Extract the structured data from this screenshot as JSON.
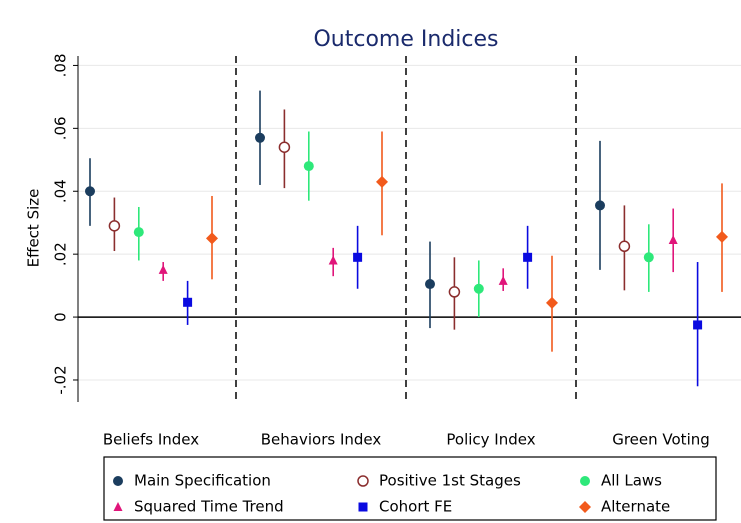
{
  "chart_data": {
    "type": "coefficient",
    "title": "Outcome Indices",
    "y_label": "Effect Size",
    "categories": [
      "Beliefs Index",
      "Behaviors Index",
      "Policy Index",
      "Green Voting"
    ],
    "ylim": [
      -0.027,
      0.083
    ],
    "yticks": [
      {
        "value": -0.02,
        "label": "-.02"
      },
      0,
      {
        "value": 0.02,
        "label": ".02"
      },
      {
        "value": 0.04,
        "label": ".04"
      },
      {
        "value": 0.06,
        "label": ".06"
      },
      {
        "value": 0.08,
        "label": ".08"
      }
    ],
    "grid": true,
    "series": [
      {
        "name": "Main Specification",
        "color": "#1b3d5e",
        "marker": "circle",
        "values": [
          0.04,
          0.057,
          0.0105,
          0.0355
        ],
        "lower": [
          0.029,
          0.042,
          -0.0035,
          0.015
        ],
        "upper": [
          0.0505,
          0.072,
          0.024,
          0.056
        ]
      },
      {
        "name": "Positive 1st Stages",
        "color": "#8b2e2e",
        "marker": "hollow-circle",
        "values": [
          0.029,
          0.054,
          0.008,
          0.0225
        ],
        "lower": [
          0.021,
          0.041,
          -0.004,
          0.0085
        ],
        "upper": [
          0.038,
          0.066,
          0.019,
          0.0355
        ]
      },
      {
        "name": "All Laws",
        "color": "#2ee87a",
        "marker": "circle",
        "values": [
          0.027,
          0.048,
          0.009,
          0.019
        ],
        "lower": [
          0.018,
          0.037,
          0,
          0.008
        ],
        "upper": [
          0.035,
          0.059,
          0.018,
          0.0295
        ]
      },
      {
        "name": "Squared Time Trend",
        "color": "#e0157a",
        "marker": "triangle",
        "values": [
          0.015,
          0.018,
          0.0115,
          0.0245
        ],
        "lower": [
          0.0115,
          0.013,
          0.0083,
          0.0143
        ],
        "upper": [
          0.0175,
          0.022,
          0.0155,
          0.0345
        ]
      },
      {
        "name": "Cohort FE",
        "color": "#0a0ae0",
        "marker": "square",
        "values": [
          0.0047,
          0.019,
          0.019,
          -0.0025
        ],
        "lower": [
          -0.0025,
          0.009,
          0.009,
          -0.022
        ],
        "upper": [
          0.0115,
          0.029,
          0.029,
          0.0175
        ]
      },
      {
        "name": "Alternate",
        "color": "#f25a1c",
        "marker": "diamond",
        "values": [
          0.025,
          0.043,
          0.0045,
          0.0255
        ],
        "lower": [
          0.012,
          0.026,
          -0.011,
          0.008
        ],
        "upper": [
          0.0385,
          0.059,
          0.0195,
          0.0425
        ]
      }
    ]
  }
}
